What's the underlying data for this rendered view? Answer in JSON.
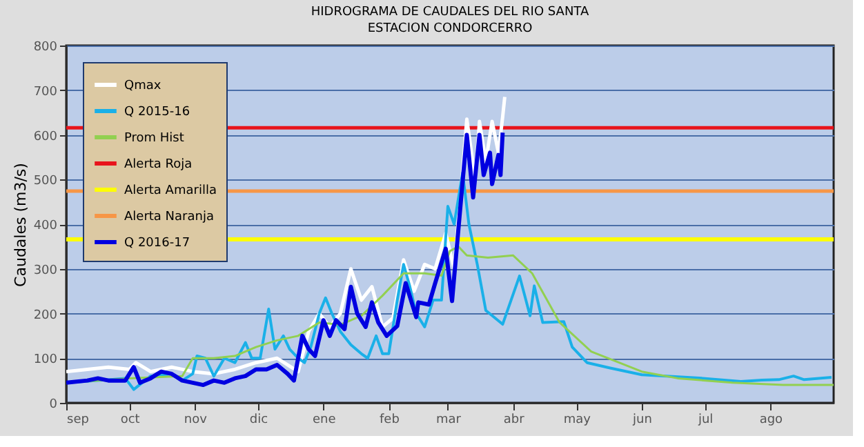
{
  "chart_data": {
    "type": "line",
    "title": "HIDROGRAMA DE CAUDALES  DEL RIO SANTA",
    "subtitle": "ESTACION CONDORCERRO",
    "ylabel": "Caudales (m3/s)",
    "xlim": [
      "2016-09-01",
      "2017-08-31"
    ],
    "xticks": [
      {
        "value": "2016-09-01",
        "label": "sep"
      },
      {
        "value": "2016-10-01",
        "label": "oct"
      },
      {
        "value": "2016-11-01",
        "label": "nov"
      },
      {
        "value": "2016-12-01",
        "label": "dic"
      },
      {
        "value": "2017-01-01",
        "label": "ene"
      },
      {
        "value": "2017-02-01",
        "label": "feb"
      },
      {
        "value": "2017-03-01",
        "label": "mar"
      },
      {
        "value": "2017-04-01",
        "label": "abr"
      },
      {
        "value": "2017-05-01",
        "label": "may"
      },
      {
        "value": "2017-06-01",
        "label": "jun"
      },
      {
        "value": "2017-07-01",
        "label": "jul"
      },
      {
        "value": "2017-08-01",
        "label": "ago"
      }
    ],
    "ylim": [
      0,
      800
    ],
    "yticks": [
      0,
      100,
      200,
      300,
      400,
      500,
      600,
      700,
      800
    ],
    "grid": "y",
    "legend": "top left",
    "marker": "none",
    "line_style": "solid",
    "series": [
      {
        "name": "Qmax",
        "color": "#ffffff",
        "x": [
          "2016-09-01",
          "2016-09-11",
          "2016-09-21",
          "2016-10-01",
          "2016-10-04",
          "2016-10-11",
          "2016-10-21",
          "2016-10-31",
          "2016-11-10",
          "2016-11-20",
          "2016-11-30",
          "2016-12-10",
          "2016-12-20",
          "2016-12-25",
          "2016-12-30",
          "2017-01-04",
          "2017-01-09",
          "2017-01-14",
          "2017-01-19",
          "2017-01-24",
          "2017-01-29",
          "2017-02-03",
          "2017-02-08",
          "2017-02-13",
          "2017-02-18",
          "2017-02-23",
          "2017-02-28",
          "2017-03-04",
          "2017-03-08",
          "2017-03-10",
          "2017-03-14",
          "2017-03-16",
          "2017-03-19",
          "2017-03-22",
          "2017-03-25",
          "2017-03-27",
          "2017-03-28"
        ],
        "values": [
          70,
          75,
          80,
          75,
          90,
          70,
          80,
          70,
          65,
          75,
          90,
          100,
          70,
          160,
          200,
          170,
          200,
          300,
          230,
          260,
          170,
          190,
          320,
          250,
          310,
          300,
          380,
          300,
          520,
          635,
          500,
          630,
          540,
          630,
          560,
          640,
          685
        ]
      },
      {
        "name": "Q 2015-16",
        "color": "#1ab0e8",
        "x": [
          "2016-09-01",
          "2016-09-16",
          "2016-09-29",
          "2016-10-03",
          "2016-10-11",
          "2016-10-21",
          "2016-10-26",
          "2016-10-31",
          "2016-11-02",
          "2016-11-06",
          "2016-11-10",
          "2016-11-15",
          "2016-11-20",
          "2016-11-25",
          "2016-11-28",
          "2016-12-02",
          "2016-12-06",
          "2016-12-09",
          "2016-12-13",
          "2016-12-16",
          "2016-12-20",
          "2016-12-23",
          "2016-12-26",
          "2016-12-30",
          "2017-01-02",
          "2017-01-05",
          "2017-01-09",
          "2017-01-14",
          "2017-01-19",
          "2017-01-22",
          "2017-01-26",
          "2017-01-29",
          "2017-02-01",
          "2017-02-05",
          "2017-02-08",
          "2017-02-11",
          "2017-02-14",
          "2017-02-18",
          "2017-02-22",
          "2017-02-26",
          "2017-03-01",
          "2017-03-04",
          "2017-03-08",
          "2017-03-11",
          "2017-03-15",
          "2017-03-19",
          "2017-03-27",
          "2017-04-04",
          "2017-04-09",
          "2017-04-11",
          "2017-04-15",
          "2017-04-25",
          "2017-04-29",
          "2017-05-06",
          "2017-05-17",
          "2017-06-01",
          "2017-06-30",
          "2017-07-18",
          "2017-07-28",
          "2017-08-05",
          "2017-08-12",
          "2017-08-17",
          "2017-08-30"
        ],
        "values": [
          45,
          50,
          55,
          30,
          60,
          65,
          50,
          65,
          105,
          100,
          60,
          100,
          90,
          135,
          100,
          100,
          210,
          120,
          150,
          120,
          100,
          90,
          125,
          200,
          235,
          200,
          160,
          130,
          110,
          100,
          150,
          110,
          110,
          230,
          310,
          260,
          200,
          170,
          230,
          230,
          440,
          400,
          515,
          400,
          309,
          207,
          176,
          284,
          195,
          262,
          180,
          182,
          125,
          90,
          78,
          63,
          55,
          48,
          51,
          52,
          60,
          52,
          57
        ]
      },
      {
        "name": "Prom Hist",
        "color": "#92d050",
        "x": [
          "2016-09-01",
          "2016-10-01",
          "2016-10-26",
          "2016-10-31",
          "2016-11-10",
          "2016-11-20",
          "2016-11-30",
          "2016-12-10",
          "2016-12-20",
          "2016-12-30",
          "2017-01-09",
          "2017-01-19",
          "2017-01-29",
          "2017-02-08",
          "2017-02-18",
          "2017-02-26",
          "2017-03-02",
          "2017-03-06",
          "2017-03-10",
          "2017-03-20",
          "2017-04-01",
          "2017-04-10",
          "2017-04-23",
          "2017-05-08",
          "2017-06-01",
          "2017-06-18",
          "2017-07-14",
          "2017-08-07",
          "2017-08-31"
        ],
        "values": [
          45,
          55,
          60,
          100,
          100,
          105,
          125,
          140,
          150,
          180,
          175,
          195,
          240,
          290,
          290,
          285,
          340,
          350,
          330,
          325,
          330,
          290,
          180,
          115,
          70,
          55,
          45,
          40,
          40
        ]
      },
      {
        "name": "Alerta Roja",
        "color": "#e8141c",
        "x": [
          "2016-09-01",
          "2017-08-31"
        ],
        "values": [
          616,
          616
        ]
      },
      {
        "name": "Alerta Amarilla",
        "color": "#ffff00",
        "x": [
          "2016-09-01",
          "2017-08-31"
        ],
        "values": [
          366,
          366
        ]
      },
      {
        "name": "Alerta Naranja",
        "color": "#f79646",
        "x": [
          "2016-09-01",
          "2017-08-31"
        ],
        "values": [
          474,
          474
        ]
      },
      {
        "name": "Q 2016-17",
        "color": "#0000e0",
        "x": [
          "2016-09-01",
          "2016-09-11",
          "2016-09-16",
          "2016-09-21",
          "2016-09-29",
          "2016-10-03",
          "2016-10-06",
          "2016-10-11",
          "2016-10-16",
          "2016-10-21",
          "2016-10-26",
          "2016-10-31",
          "2016-11-05",
          "2016-11-10",
          "2016-11-15",
          "2016-11-20",
          "2016-11-25",
          "2016-11-30",
          "2016-12-05",
          "2016-12-10",
          "2016-12-15",
          "2016-12-18",
          "2016-12-22",
          "2016-12-25",
          "2016-12-28",
          "2017-01-01",
          "2017-01-04",
          "2017-01-07",
          "2017-01-11",
          "2017-01-14",
          "2017-01-17",
          "2017-01-21",
          "2017-01-24",
          "2017-01-27",
          "2017-01-31",
          "2017-02-05",
          "2017-02-09",
          "2017-02-14",
          "2017-02-15",
          "2017-02-20",
          "2017-02-23",
          "2017-02-28",
          "2017-03-03",
          "2017-03-08",
          "2017-03-10",
          "2017-03-13",
          "2017-03-16",
          "2017-03-18",
          "2017-03-21",
          "2017-03-22",
          "2017-03-25",
          "2017-03-26",
          "2017-03-27"
        ],
        "values": [
          45,
          50,
          55,
          50,
          50,
          80,
          45,
          55,
          70,
          65,
          50,
          45,
          40,
          50,
          45,
          55,
          60,
          75,
          75,
          85,
          65,
          50,
          150,
          120,
          105,
          185,
          150,
          185,
          165,
          260,
          200,
          170,
          225,
          180,
          150,
          172,
          268,
          192,
          225,
          220,
          268,
          345,
          228,
          495,
          600,
          460,
          600,
          510,
          560,
          490,
          555,
          510,
          605
        ]
      }
    ]
  }
}
